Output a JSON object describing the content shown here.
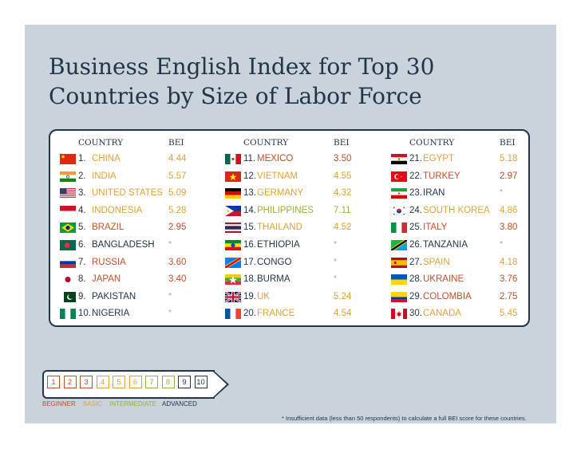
{
  "title": "Business English Index for Top 30 Countries by Size of Labor Force",
  "headers": {
    "country": "COUNTRY",
    "bei": "BEI"
  },
  "columns": [
    {
      "rows": [
        {
          "rank": "1.",
          "name": "CHINA",
          "bei": "4.44",
          "flag": "cn-flag-icon",
          "level": "basic"
        },
        {
          "rank": "2.",
          "name": "INDIA",
          "bei": "5.57",
          "flag": "in-flag-icon",
          "level": "basic"
        },
        {
          "rank": "3.",
          "name": "UNITED STATES",
          "bei": "5.09",
          "flag": "us-flag-icon",
          "level": "basic"
        },
        {
          "rank": "4.",
          "name": "INDONESIA",
          "bei": "5.28",
          "flag": "id-flag-icon",
          "level": "basic"
        },
        {
          "rank": "5.",
          "name": "BRAZIL",
          "bei": "2.95",
          "flag": "br-flag-icon",
          "level": "beg"
        },
        {
          "rank": "6.",
          "name": "BANGLADESH",
          "bei": "*",
          "flag": "bd-flag-icon",
          "level": "na"
        },
        {
          "rank": "7.",
          "name": "RUSSIA",
          "bei": "3.60",
          "flag": "ru-flag-icon",
          "level": "beg"
        },
        {
          "rank": "8.",
          "name": "JAPAN",
          "bei": "3.40",
          "flag": "jp-flag-icon",
          "level": "beg"
        },
        {
          "rank": "9.",
          "name": "PAKISTAN",
          "bei": "*",
          "flag": "pk-flag-icon",
          "level": "na"
        },
        {
          "rank": "10.",
          "name": "NIGERIA",
          "bei": "*",
          "flag": "ng-flag-icon",
          "level": "na"
        }
      ]
    },
    {
      "rows": [
        {
          "rank": "11.",
          "name": "MEXICO",
          "bei": "3.50",
          "flag": "mx-flag-icon",
          "level": "beg"
        },
        {
          "rank": "12.",
          "name": "VIETNAM",
          "bei": "4.55",
          "flag": "vn-flag-icon",
          "level": "basic"
        },
        {
          "rank": "13.",
          "name": "GERMANY",
          "bei": "4.32",
          "flag": "de-flag-icon",
          "level": "basic"
        },
        {
          "rank": "14.",
          "name": "PHILIPPINES",
          "bei": "7.11",
          "flag": "ph-flag-icon",
          "level": "int"
        },
        {
          "rank": "15.",
          "name": "THAILAND",
          "bei": "4.52",
          "flag": "th-flag-icon",
          "level": "basic"
        },
        {
          "rank": "16.",
          "name": "ETHIOPIA",
          "bei": "*",
          "flag": "et-flag-icon",
          "level": "na"
        },
        {
          "rank": "17.",
          "name": "CONGO",
          "bei": "*",
          "flag": "cd-flag-icon",
          "level": "na"
        },
        {
          "rank": "18.",
          "name": "BURMA",
          "bei": "*",
          "flag": "mm-flag-icon",
          "level": "na"
        },
        {
          "rank": "19.",
          "name": "UK",
          "bei": "5.24",
          "flag": "gb-flag-icon",
          "level": "basic"
        },
        {
          "rank": "20.",
          "name": "FRANCE",
          "bei": "4.54",
          "flag": "fr-flag-icon",
          "level": "basic"
        }
      ]
    },
    {
      "rows": [
        {
          "rank": "21.",
          "name": "EGYPT",
          "bei": "5.18",
          "flag": "eg-flag-icon",
          "level": "basic"
        },
        {
          "rank": "22.",
          "name": "TURKEY",
          "bei": "2.97",
          "flag": "tr-flag-icon",
          "level": "beg"
        },
        {
          "rank": "23.",
          "name": "IRAN",
          "bei": "*",
          "flag": "ir-flag-icon",
          "level": "na"
        },
        {
          "rank": "24.",
          "name": "SOUTH KOREA",
          "bei": "4.86",
          "flag": "kr-flag-icon",
          "level": "basic"
        },
        {
          "rank": "25.",
          "name": "ITALY",
          "bei": "3.80",
          "flag": "it-flag-icon",
          "level": "beg"
        },
        {
          "rank": "26.",
          "name": "TANZANIA",
          "bei": "*",
          "flag": "tz-flag-icon",
          "level": "na"
        },
        {
          "rank": "27.",
          "name": "SPAIN",
          "bei": "4.18",
          "flag": "es-flag-icon",
          "level": "basic"
        },
        {
          "rank": "28.",
          "name": "UKRAINE",
          "bei": "3.76",
          "flag": "ua-flag-icon",
          "level": "beg"
        },
        {
          "rank": "29.",
          "name": "COLOMBIA",
          "bei": "2.75",
          "flag": "co-flag-icon",
          "level": "beg"
        },
        {
          "rank": "30.",
          "name": "CANADA",
          "bei": "5.45",
          "flag": "ca-flag-icon",
          "level": "basic"
        }
      ]
    }
  ],
  "scale": {
    "steps": [
      "1",
      "2",
      "3",
      "4",
      "5",
      "6",
      "7",
      "8",
      "9",
      "10"
    ],
    "labels": {
      "beginner": "BEGINNER",
      "basic": "BASIC",
      "intermediate": "INTERMEDIATE",
      "advanced": "ADVANCED"
    }
  },
  "footnote": "* Insufficient data (less than 50 respondents) to calculate a full BEI score for these countries.",
  "colors": {
    "navy": "#233547",
    "beginner": "#c0502a",
    "basic": "#e0a33c",
    "intermediate": "#9aaf3c",
    "advanced": "#233547",
    "panel": "#c9d3db"
  }
}
